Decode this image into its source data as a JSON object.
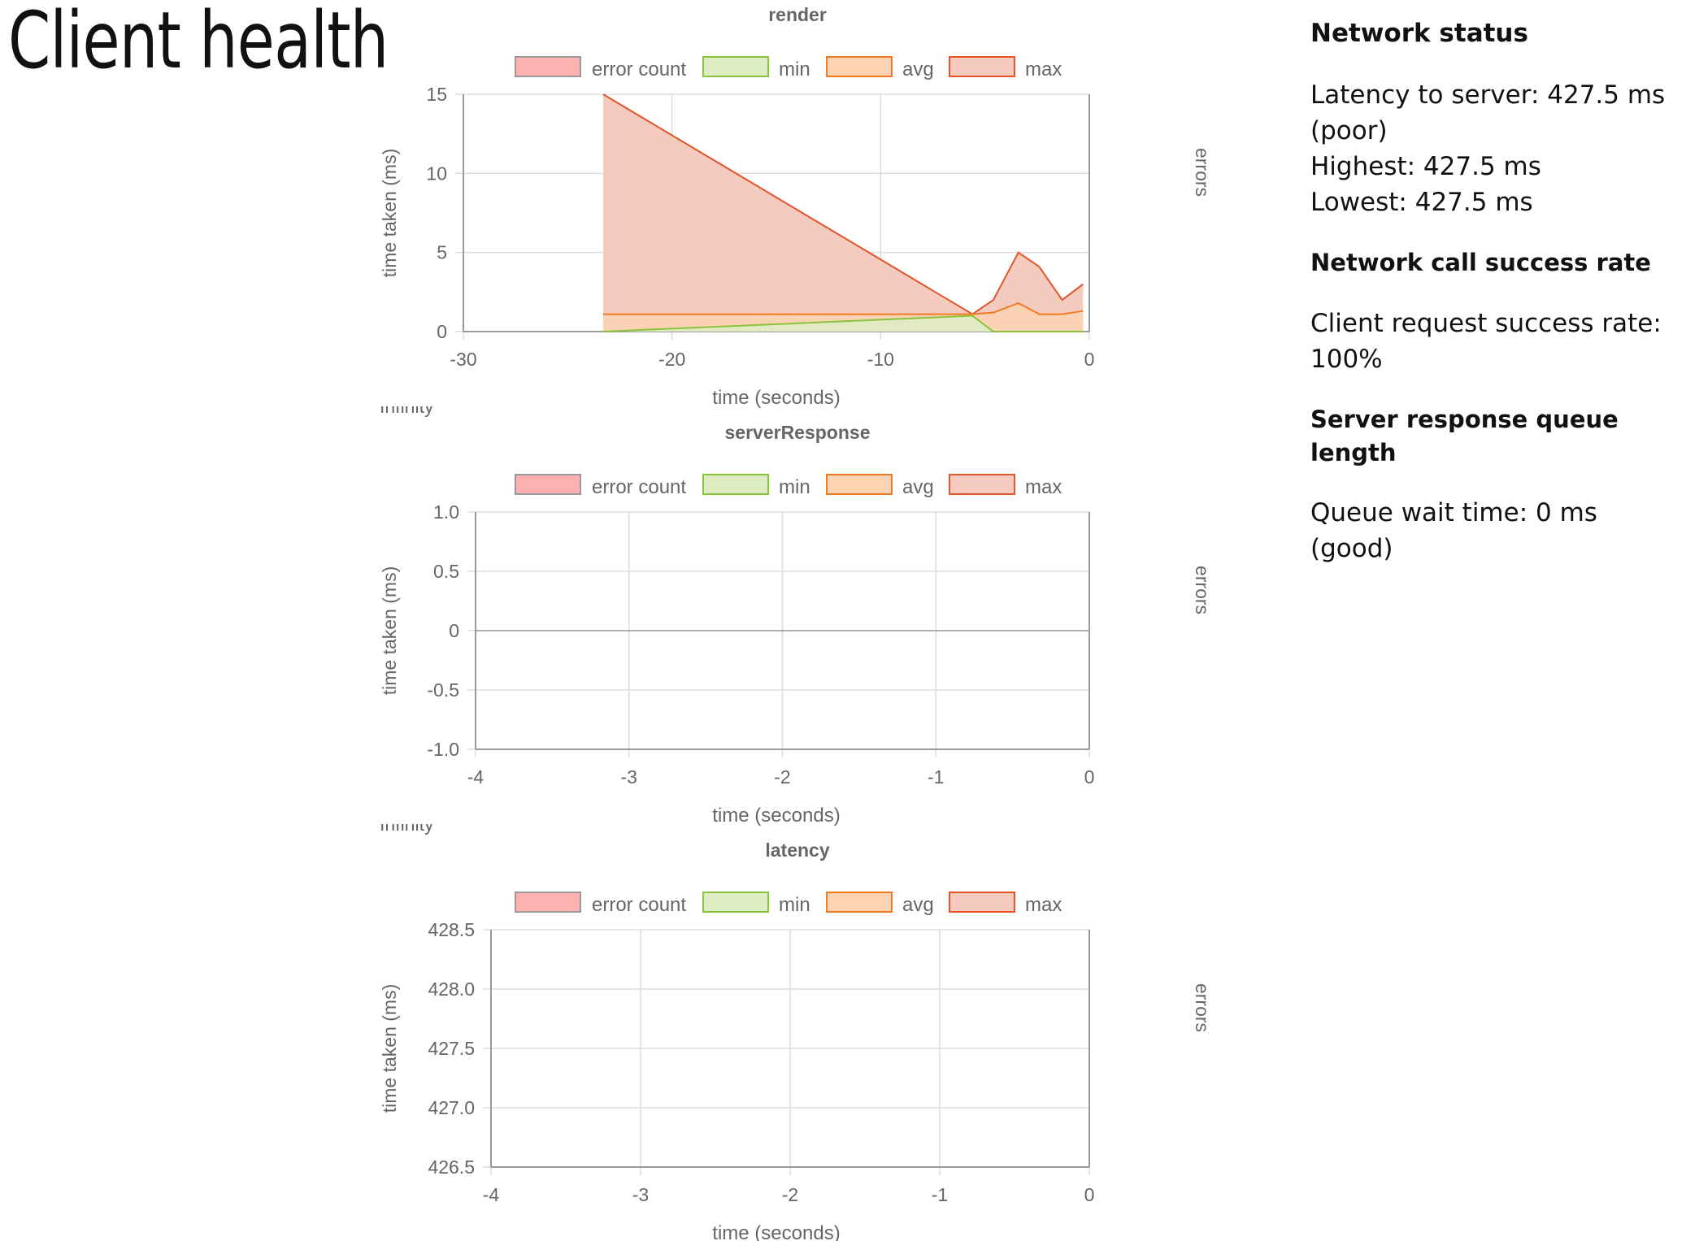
{
  "page": {
    "title": "Client health"
  },
  "colors": {
    "error": "#fdb1b1",
    "error_border": "#999999",
    "min": "#deecc4",
    "min_border": "#8ac43a",
    "avg": "#fdd3b4",
    "avg_border": "#f07b22",
    "max": "#f5cbc0",
    "max_border": "#e2542a",
    "grid": "#dddddd",
    "axis": "#999999",
    "text": "#666666"
  },
  "status": {
    "network_heading": "Network status",
    "latency_line": "Latency to server: 427.5 ms (poor)",
    "highest_line": "Highest: 427.5 ms",
    "lowest_line": "Lowest: 427.5 ms",
    "success_heading": "Network call success rate",
    "success_line": "Client request success rate: 100%",
    "queue_heading": "Server response queue length",
    "queue_line": "Queue wait time: 0 ms (good)"
  },
  "chart_data": [
    {
      "type": "area",
      "title": "render",
      "xlabel": "time (seconds)",
      "ylabel": "time taken (ms)",
      "y2label": "errors",
      "y2_tick": "Infinity",
      "legend_position": "top",
      "legend": [
        "error count",
        "min",
        "avg",
        "max"
      ],
      "xlim": [
        -30,
        0
      ],
      "ylim": [
        0,
        15
      ],
      "xticks": [
        -30,
        -20,
        -10,
        0
      ],
      "yticks": [
        0,
        5,
        10,
        15
      ],
      "xtick_labels": [
        "-30",
        "-20",
        "-10",
        "0"
      ],
      "ytick_labels": [
        "0",
        "5",
        "10",
        "15"
      ],
      "grid": true,
      "series": [
        {
          "name": "max",
          "x": [
            -23.3,
            -5.6,
            -4.6,
            -3.4,
            -2.4,
            -1.3,
            -0.3
          ],
          "y": [
            15,
            1.1,
            2.0,
            5.0,
            4.1,
            2.0,
            3.0
          ]
        },
        {
          "name": "avg",
          "x": [
            -23.3,
            -5.6,
            -4.6,
            -3.4,
            -2.4,
            -1.3,
            -0.3
          ],
          "y": [
            1.1,
            1.1,
            1.2,
            1.8,
            1.1,
            1.1,
            1.3
          ]
        },
        {
          "name": "min",
          "x": [
            -23.3,
            -5.6,
            -4.6,
            -3.4,
            -2.4,
            -1.3,
            -0.3
          ],
          "y": [
            0,
            1.0,
            0,
            0,
            0,
            0,
            0
          ]
        },
        {
          "name": "error count",
          "x": [],
          "y": []
        }
      ]
    },
    {
      "type": "area",
      "title": "serverResponse",
      "xlabel": "time (seconds)",
      "ylabel": "time taken (ms)",
      "y2label": "errors",
      "y2_tick": "Infinity",
      "legend_position": "top",
      "legend": [
        "error count",
        "min",
        "avg",
        "max"
      ],
      "xlim": [
        -4,
        0
      ],
      "ylim": [
        -1,
        1
      ],
      "xticks": [
        -4,
        -3,
        -2,
        -1,
        0
      ],
      "yticks": [
        -1,
        -0.5,
        0,
        0.5,
        1
      ],
      "xtick_labels": [
        "-4",
        "-3",
        "-2",
        "-1",
        "0"
      ],
      "ytick_labels": [
        "-1.0",
        "-0.5",
        "0",
        "0.5",
        "1.0"
      ],
      "grid": true,
      "series": []
    },
    {
      "type": "area",
      "title": "latency",
      "xlabel": "time (seconds)",
      "ylabel": "time taken (ms)",
      "y2label": "errors",
      "legend_position": "top",
      "legend": [
        "error count",
        "min",
        "avg",
        "max"
      ],
      "xlim": [
        -4,
        0
      ],
      "ylim": [
        426.5,
        428.5
      ],
      "xticks": [
        -4,
        -3,
        -2,
        -1,
        0
      ],
      "yticks": [
        426.5,
        427.0,
        427.5,
        428.0,
        428.5
      ],
      "xtick_labels": [
        "-4",
        "-3",
        "-2",
        "-1",
        "0"
      ],
      "ytick_labels": [
        "426.5",
        "427.0",
        "427.5",
        "428.0",
        "428.5"
      ],
      "grid": true,
      "series": []
    }
  ]
}
